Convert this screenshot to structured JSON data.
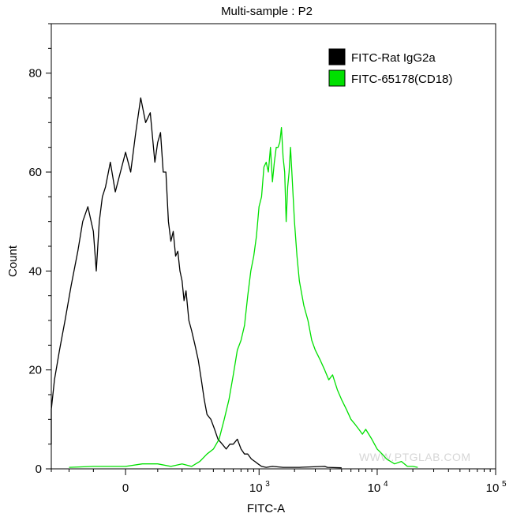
{
  "chart_data": {
    "type": "line",
    "title": "Multi-sample : P2",
    "xlabel": "FITC-A",
    "ylabel": "Count",
    "xscale": "biexponential",
    "xlim": [
      -300,
      100000
    ],
    "ylim": [
      0,
      90
    ],
    "x_ticks": [
      {
        "value": 0,
        "base": "0",
        "exp": ""
      },
      {
        "value": 1000,
        "base": "10",
        "exp": "3"
      },
      {
        "value": 10000,
        "base": "10",
        "exp": "4"
      },
      {
        "value": 100000,
        "base": "10",
        "exp": "5"
      }
    ],
    "y_ticks": [
      0,
      20,
      40,
      60,
      80
    ],
    "legend_position": "top-right",
    "watermark": "WWW.PTGLAB.COM",
    "series": [
      {
        "name": "FITC-Rat IgG2a",
        "color": "#000000",
        "x": [
          -400,
          -380,
          -360,
          -340,
          -310,
          -280,
          -250,
          -220,
          -190,
          -160,
          -140,
          -120,
          -100,
          -90,
          -80,
          -70,
          -60,
          -45,
          -30,
          -15,
          0,
          15,
          30,
          45,
          60,
          75,
          90,
          100,
          110,
          120,
          130,
          140,
          150,
          160,
          170,
          180,
          190,
          200,
          210,
          220,
          235,
          250,
          270,
          290,
          310,
          330,
          350,
          380,
          410,
          440,
          480,
          520,
          560,
          600,
          650,
          700,
          750,
          800,
          860,
          920,
          980,
          1050,
          1150,
          1300,
          1600,
          2200,
          3600,
          3800,
          5000
        ],
        "y": [
          5,
          6,
          8,
          9,
          12,
          18,
          24,
          30,
          37,
          44,
          50,
          53,
          48,
          40,
          50,
          55,
          57,
          62,
          56,
          60,
          64,
          60,
          68,
          75,
          70,
          72,
          62,
          66,
          68,
          60,
          60,
          50,
          46,
          48,
          43,
          44,
          40,
          38,
          34,
          36,
          30,
          28,
          25,
          22,
          18,
          14,
          11,
          10,
          8,
          6,
          5,
          4,
          5,
          5,
          6,
          4,
          3,
          3,
          2,
          1.5,
          1,
          0.5,
          0.3,
          0.5,
          0.3,
          0.3,
          0.5,
          0.3,
          0.2
        ]
      },
      {
        "name": "FITC-65178(CD18)",
        "color": "#00e000",
        "x": [
          -200,
          -100,
          -50,
          0,
          50,
          100,
          150,
          200,
          250,
          300,
          350,
          400,
          450,
          500,
          550,
          600,
          650,
          700,
          750,
          800,
          850,
          900,
          950,
          1000,
          1050,
          1100,
          1150,
          1200,
          1250,
          1300,
          1350,
          1400,
          1450,
          1500,
          1550,
          1600,
          1650,
          1700,
          1750,
          1800,
          1850,
          1900,
          2000,
          2100,
          2200,
          2400,
          2600,
          2800,
          3000,
          3300,
          3600,
          3900,
          4200,
          4600,
          5000,
          5500,
          6000,
          6500,
          7000,
          7500,
          8000,
          9000,
          10000,
          11000,
          12000,
          14000,
          16000,
          18000,
          20000,
          22000
        ],
        "y": [
          0.3,
          0.5,
          0.5,
          0.5,
          1,
          1,
          0.5,
          1,
          0.5,
          1.5,
          3,
          4,
          6,
          10,
          14,
          19,
          24,
          26,
          29,
          35,
          40,
          43,
          47,
          53,
          55,
          61,
          62,
          60,
          65,
          58,
          62,
          65,
          65,
          66,
          69,
          63,
          60,
          50,
          57,
          60,
          65,
          60,
          50,
          43,
          38,
          33,
          30,
          26,
          24,
          22,
          20,
          18,
          19,
          16,
          14,
          12,
          10,
          9,
          8,
          7,
          8,
          6,
          4,
          3,
          2,
          1,
          1.5,
          0.5,
          0.5,
          0.3
        ]
      }
    ]
  }
}
